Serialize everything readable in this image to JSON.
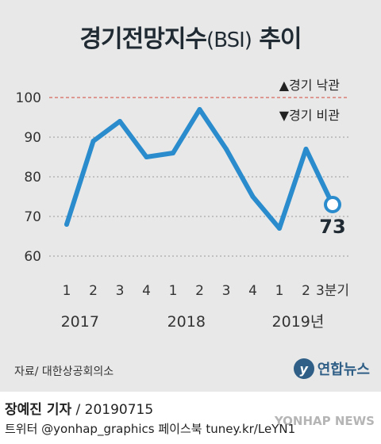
{
  "header": {
    "title_main": "경기전망지수",
    "title_paren": "(BSI)",
    "title_tail": " 추이"
  },
  "legend": {
    "up": "▲경기 낙관",
    "down": "▼경기 비관"
  },
  "chart_data": {
    "type": "line",
    "x_labels": [
      "1",
      "2",
      "3",
      "4",
      "1",
      "2",
      "3",
      "4",
      "1",
      "2",
      "3분기"
    ],
    "year_labels": [
      {
        "text": "2017",
        "center_index": 0.5
      },
      {
        "text": "2018",
        "center_index": 4.5
      },
      {
        "text": "2019년",
        "center_index": 8.7
      }
    ],
    "series": [
      {
        "values": [
          68,
          89,
          94,
          85,
          86,
          97,
          87,
          75,
          67,
          87,
          73
        ]
      }
    ],
    "last_value_label": "73",
    "yticks": [
      60,
      70,
      80,
      90,
      100
    ],
    "ylim": [
      60,
      100
    ],
    "reference_line": 100,
    "colors": {
      "line": "#2a8ccd",
      "reference": "#d24a3a",
      "grid": "#9a9a9a"
    }
  },
  "footer": {
    "source": "자료/ 대한상공회의소",
    "logo_text": "연합뉴스",
    "reporter": "장예진 기자",
    "date": " / 20190715",
    "social": "트위터 @yonhap_graphics  페이스북 tuney.kr/LeYN1",
    "watermark": "YONHAP NEWS"
  }
}
